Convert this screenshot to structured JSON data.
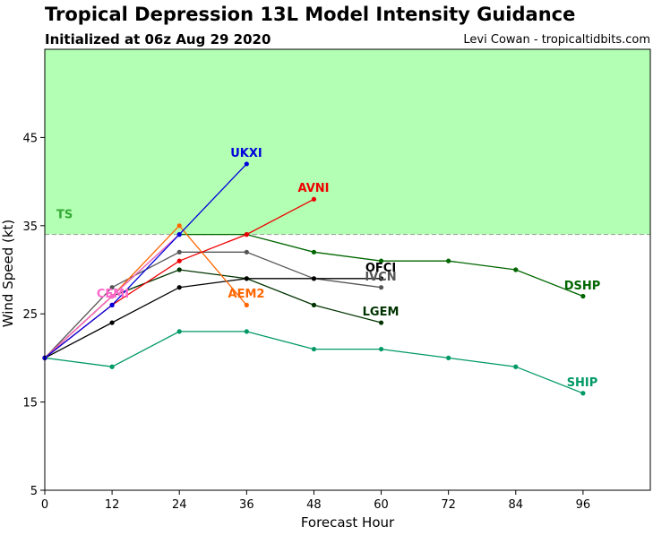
{
  "header": {
    "title": "Tropical Depression 13L Model Intensity Guidance",
    "subtitle": "Initialized at 06z Aug 29 2020",
    "credit": "Levi Cowan - tropicaltidbits.com"
  },
  "chart_data": {
    "type": "line",
    "xlabel": "Forecast Hour",
    "ylabel": "Wind Speed (kt)",
    "xlim": [
      0,
      108
    ],
    "ylim": [
      5,
      55
    ],
    "xticks": [
      0,
      12,
      24,
      36,
      48,
      60,
      72,
      84,
      96
    ],
    "yticks": [
      5,
      15,
      25,
      35,
      45
    ],
    "threshold": {
      "label": "TS",
      "value": 34,
      "shade_color": "#b3ffb3",
      "line_color": "#999999"
    },
    "series": [
      {
        "name": "SHIP",
        "color": "#009966",
        "x": [
          0,
          12,
          24,
          36,
          48,
          60,
          72,
          84,
          96
        ],
        "y": [
          20,
          19,
          23,
          23,
          21,
          21,
          20,
          19,
          16
        ]
      },
      {
        "name": "DSHP",
        "color": "#006600",
        "x": [
          0,
          12,
          24,
          36,
          48,
          60,
          72,
          84,
          96
        ],
        "y": [
          20,
          27,
          34,
          34,
          32,
          31,
          31,
          30,
          27
        ]
      },
      {
        "name": "LGEM",
        "color": "#003300",
        "x": [
          0,
          12,
          24,
          36,
          48,
          60
        ],
        "y": [
          20,
          27,
          30,
          29,
          26,
          24
        ]
      },
      {
        "name": "IVCN",
        "color": "#555555",
        "x": [
          0,
          12,
          24,
          36,
          48,
          60
        ],
        "y": [
          20,
          28,
          32,
          32,
          29,
          28
        ]
      },
      {
        "name": "OFCI",
        "color": "#000000",
        "x": [
          0,
          12,
          24,
          36,
          48,
          60
        ],
        "y": [
          20,
          24,
          28,
          29,
          29,
          29
        ]
      },
      {
        "name": "AEM2",
        "color": "#ff6600",
        "x": [
          0,
          12,
          24,
          36
        ],
        "y": [
          20,
          27,
          35,
          26
        ]
      },
      {
        "name": "CEMI",
        "color": "#ff66cc",
        "x": [
          0,
          12,
          24
        ],
        "y": [
          20,
          27,
          34
        ]
      },
      {
        "name": "AVNI",
        "color": "#ee0000",
        "x": [
          0,
          12,
          24,
          36,
          48
        ],
        "y": [
          20,
          26,
          31,
          34,
          38
        ]
      },
      {
        "name": "UKXI",
        "color": "#0000dd",
        "x": [
          0,
          12,
          24,
          36
        ],
        "y": [
          20,
          26,
          34,
          42
        ]
      }
    ]
  }
}
